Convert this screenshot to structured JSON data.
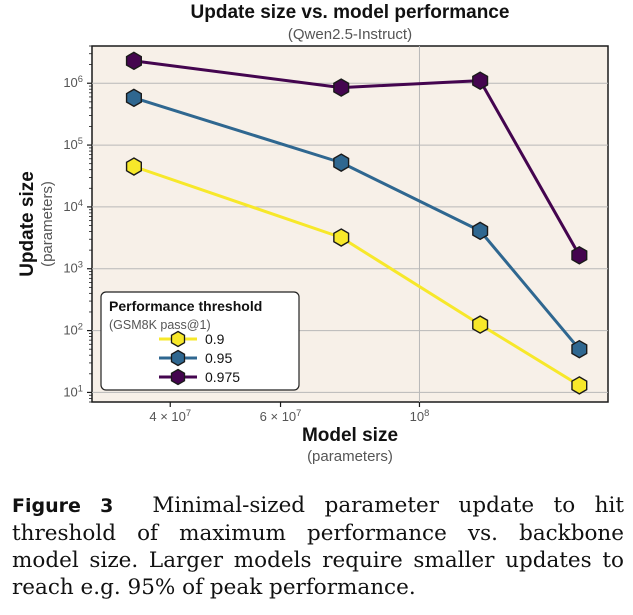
{
  "chart_data": {
    "type": "line",
    "title": "Update size vs.  model performance",
    "subtitle": "(Qwen2.5-Instruct)",
    "xlabel": "Model size",
    "xlabel_sub": "(parameters)",
    "ylabel": "Update size",
    "ylabel_sub": "(parameters)",
    "x_scale": "log",
    "y_scale": "log",
    "x": [
      35000000,
      75000000,
      125000000,
      180000000
    ],
    "xlim": [
      30000000,
      200000000
    ],
    "ylim": [
      7,
      4000000
    ],
    "x_ticks": [
      {
        "value": 40000000,
        "base": "4 × 10",
        "exp": "7"
      },
      {
        "value": 60000000,
        "base": "6 × 10",
        "exp": "7"
      },
      {
        "value": 100000000,
        "base": "10",
        "exp": "8"
      }
    ],
    "y_ticks": [
      {
        "value": 10,
        "base": "10",
        "exp": "1"
      },
      {
        "value": 100,
        "base": "10",
        "exp": "2"
      },
      {
        "value": 1000,
        "base": "10",
        "exp": "3"
      },
      {
        "value": 10000,
        "base": "10",
        "exp": "4"
      },
      {
        "value": 100000,
        "base": "10",
        "exp": "5"
      },
      {
        "value": 1000000,
        "base": "10",
        "exp": "6"
      }
    ],
    "grid": true,
    "legend_position": "bottom-left",
    "legend_title": "Performance threshold",
    "legend_subtitle": "(GSM8K pass@1)",
    "series": [
      {
        "name": "0.9",
        "color": "#f7e82a",
        "values": [
          45000,
          3200,
          125,
          13
        ]
      },
      {
        "name": "0.95",
        "color": "#2f6790",
        "values": [
          580000,
          52000,
          4100,
          50
        ]
      },
      {
        "name": "0.975",
        "color": "#44054f",
        "values": [
          2300000,
          850000,
          1100000,
          1650
        ]
      }
    ]
  },
  "colors": {
    "plot_background": "#f7f0e8",
    "grid": "#b8b8b8",
    "marker_edge": "#1a1a1a"
  },
  "caption": {
    "label": "Figure 3",
    "text": "Minimal-sized parameter update to hit threshold of maximum performance vs. backbone model size. Larger models require smaller updates to reach e.g. 95% of peak performance."
  }
}
